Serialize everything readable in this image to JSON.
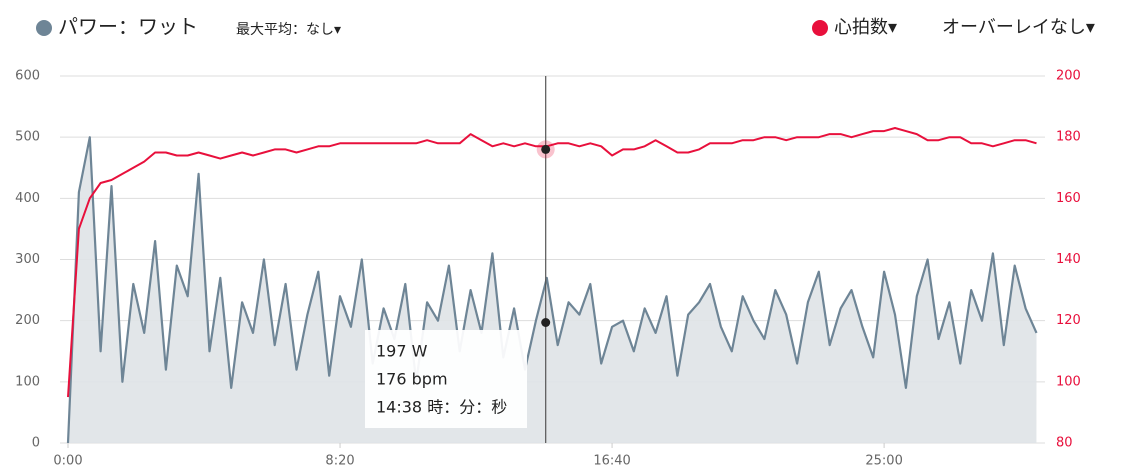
{
  "chart_data": {
    "type": "line",
    "legend": {
      "power": "パワー：ワット",
      "max_average": "最大平均：なし▾",
      "heart_rate": "心拍数▾",
      "overlay": "オーバーレイなし▾"
    },
    "x": [
      0,
      20,
      40,
      60,
      80,
      100,
      120,
      140,
      160,
      180,
      200,
      220,
      240,
      260,
      280,
      300,
      320,
      340,
      360,
      380,
      400,
      420,
      440,
      460,
      480,
      500,
      520,
      540,
      560,
      580,
      600,
      620,
      640,
      660,
      680,
      700,
      720,
      740,
      760,
      780,
      800,
      820,
      840,
      860,
      880,
      900,
      920,
      940,
      960,
      980,
      1000,
      1020,
      1040,
      1060,
      1080,
      1100,
      1120,
      1140,
      1160,
      1180,
      1200,
      1220,
      1240,
      1260,
      1280,
      1300,
      1320,
      1340,
      1360,
      1380,
      1400,
      1420,
      1440,
      1460,
      1480,
      1500,
      1520,
      1540,
      1560,
      1580,
      1600,
      1620,
      1640,
      1660,
      1680,
      1700,
      1720,
      1740,
      1760,
      1780
    ],
    "series": [
      {
        "name": "パワー",
        "axis": "y",
        "color": "#6e8596",
        "values": [
          0,
          410,
          500,
          150,
          420,
          100,
          260,
          180,
          330,
          120,
          290,
          240,
          440,
          150,
          270,
          90,
          230,
          180,
          300,
          160,
          260,
          120,
          210,
          280,
          110,
          240,
          190,
          300,
          130,
          220,
          170,
          260,
          100,
          230,
          200,
          290,
          150,
          250,
          180,
          310,
          140,
          220,
          120,
          200,
          270,
          160,
          230,
          210,
          260,
          130,
          190,
          200,
          150,
          220,
          180,
          240,
          110,
          210,
          230,
          260,
          190,
          150,
          240,
          200,
          170,
          250,
          210,
          130,
          230,
          280,
          160,
          220,
          250,
          190,
          140,
          280,
          210,
          90,
          240,
          300,
          170,
          230,
          130,
          250,
          200,
          310,
          160,
          290,
          220,
          180
        ]
      },
      {
        "name": "心拍数",
        "axis": "y2",
        "color": "#e8103c",
        "values": [
          95,
          150,
          160,
          165,
          166,
          168,
          170,
          172,
          175,
          175,
          174,
          174,
          175,
          174,
          173,
          174,
          175,
          174,
          175,
          176,
          176,
          175,
          176,
          177,
          177,
          178,
          178,
          178,
          178,
          178,
          178,
          178,
          178,
          179,
          178,
          178,
          178,
          181,
          179,
          177,
          178,
          177,
          178,
          177,
          177,
          178,
          178,
          177,
          178,
          177,
          174,
          176,
          176,
          177,
          179,
          177,
          175,
          175,
          176,
          178,
          178,
          178,
          179,
          179,
          180,
          180,
          179,
          180,
          180,
          180,
          181,
          181,
          180,
          181,
          182,
          182,
          183,
          182,
          181,
          179,
          179,
          180,
          180,
          178,
          178,
          177,
          178,
          179,
          179,
          178
        ]
      }
    ],
    "xlim": [
      0,
      1781
    ],
    "xticks": [
      {
        "value": 0,
        "label": "0:00"
      },
      {
        "value": 500,
        "label": "8:20"
      },
      {
        "value": 1000,
        "label": "16:40"
      },
      {
        "value": 1500,
        "label": "25:00"
      }
    ],
    "ylim": [
      0,
      600
    ],
    "yticks": [
      0,
      100,
      200,
      300,
      400,
      500,
      600
    ],
    "y2lim": [
      80,
      200
    ],
    "y2ticks": [
      80,
      100,
      120,
      140,
      160,
      180,
      200
    ],
    "grid": true,
    "cursor": {
      "x": {
        "value": 878,
        "label": "14:38 時：分：秒"
      },
      "power": {
        "value": 197,
        "label": "197 W"
      },
      "heart_rate": {
        "value": 176,
        "label": "176 bpm"
      }
    }
  }
}
